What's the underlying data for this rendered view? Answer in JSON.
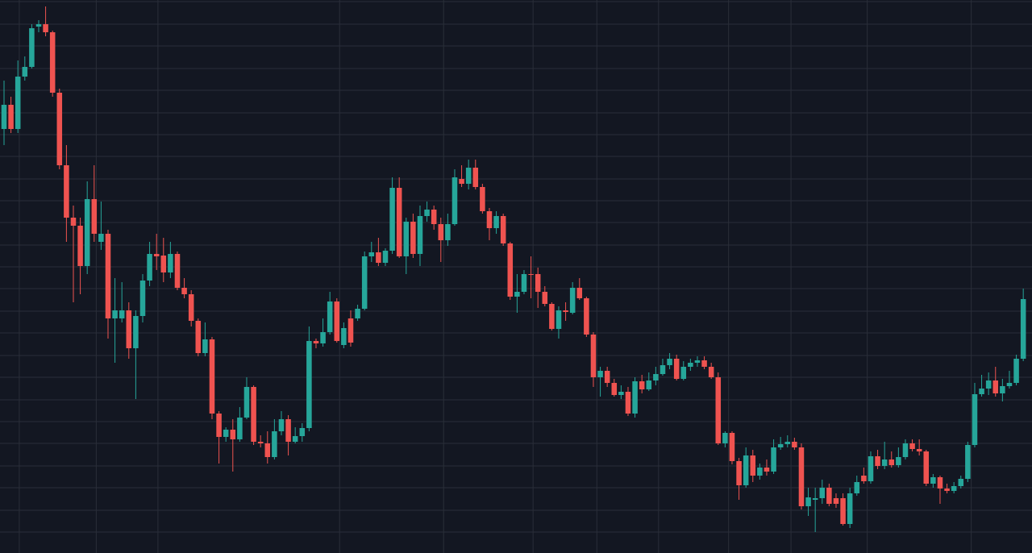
{
  "chart_data": {
    "type": "candlestick",
    "up_color": "#26a69a",
    "down_color": "#ef5350",
    "background": "#131722",
    "grid_color": "#2a2e39",
    "grid": true,
    "xlim": [
      -0.58,
      148.26
    ],
    "ylim": [
      14,
      700
    ],
    "xticks": [
      2.2,
      13.3,
      22.2,
      48.4,
      63.4,
      76.3,
      85.5,
      94.4,
      104.5,
      113.5,
      124.5,
      139.5
    ],
    "yticks": [
      698,
      670,
      643,
      615,
      588,
      560,
      533,
      506,
      478,
      451,
      424,
      396,
      369,
      342,
      314,
      287,
      259,
      232,
      204,
      177,
      150,
      122,
      95,
      67,
      40
    ],
    "open": [
      540,
      570,
      540,
      605,
      617,
      667,
      670,
      660,
      585,
      495,
      430,
      420,
      370,
      453,
      400,
      410,
      305,
      305,
      315,
      268,
      308,
      352,
      385,
      383,
      362,
      385,
      343,
      335,
      302,
      262,
      279,
      187,
      158,
      167,
      155,
      182,
      220,
      152,
      150,
      133,
      165,
      180,
      152,
      159,
      169,
      277,
      274,
      288,
      326,
      272,
      305,
      305,
      317,
      382,
      387,
      374,
      389,
      467,
      382,
      425,
      385,
      432,
      440,
      422,
      402,
      422,
      478,
      472,
      492,
      468,
      438,
      417,
      432,
      398,
      332,
      338,
      360,
      360,
      338,
      323,
      292,
      315,
      312,
      343,
      330,
      285,
      232,
      240,
      225,
      210,
      214,
      187,
      227,
      217,
      228,
      236,
      247,
      255,
      230,
      245,
      250,
      253,
      245,
      232,
      150,
      163,
      128,
      98,
      135,
      110,
      120,
      115,
      145,
      149,
      152,
      145,
      72,
      80,
      82,
      95,
      82,
      82,
      50,
      88,
      110,
      103,
      134,
      122,
      130,
      123,
      133,
      150,
      143,
      140,
      100,
      108,
      94,
      91,
      97,
      106,
      148,
      211,
      218,
      228,
      212,
      221,
      225,
      255
    ],
    "high": [
      600,
      580,
      625,
      630,
      670,
      675,
      692,
      662,
      590,
      520,
      445,
      430,
      475,
      495,
      450,
      415,
      355,
      350,
      325,
      315,
      360,
      400,
      410,
      405,
      400,
      388,
      355,
      340,
      305,
      300,
      282,
      190,
      170,
      180,
      195,
      232,
      222,
      160,
      165,
      180,
      190,
      185,
      170,
      175,
      295,
      280,
      305,
      338,
      330,
      300,
      315,
      322,
      388,
      400,
      405,
      392,
      480,
      480,
      430,
      435,
      445,
      450,
      445,
      430,
      435,
      490,
      495,
      502,
      502,
      472,
      442,
      438,
      435,
      400,
      360,
      365,
      382,
      368,
      345,
      325,
      320,
      325,
      350,
      355,
      332,
      288,
      245,
      245,
      230,
      222,
      220,
      232,
      235,
      238,
      245,
      255,
      262,
      260,
      252,
      255,
      258,
      258,
      250,
      238,
      165,
      165,
      132,
      145,
      142,
      125,
      130,
      155,
      158,
      160,
      157,
      150,
      95,
      95,
      105,
      100,
      88,
      88,
      95,
      110,
      120,
      140,
      142,
      152,
      140,
      145,
      155,
      155,
      155,
      142,
      112,
      110,
      100,
      102,
      110,
      152,
      225,
      235,
      238,
      245,
      230,
      240,
      260,
      342
    ],
    "low": [
      520,
      535,
      535,
      600,
      615,
      660,
      655,
      580,
      490,
      400,
      325,
      335,
      360,
      400,
      390,
      280,
      250,
      300,
      255,
      205,
      300,
      345,
      365,
      350,
      355,
      340,
      330,
      295,
      258,
      258,
      180,
      125,
      152,
      115,
      152,
      180,
      148,
      145,
      125,
      130,
      160,
      135,
      150,
      152,
      165,
      268,
      270,
      285,
      275,
      268,
      270,
      302,
      315,
      375,
      370,
      370,
      385,
      380,
      360,
      380,
      370,
      425,
      415,
      375,
      395,
      420,
      468,
      465,
      465,
      435,
      402,
      410,
      395,
      328,
      312,
      335,
      330,
      318,
      320,
      290,
      280,
      302,
      310,
      328,
      282,
      220,
      208,
      220,
      208,
      205,
      184,
      182,
      212,
      215,
      222,
      234,
      242,
      228,
      228,
      240,
      245,
      242,
      230,
      148,
      145,
      124,
      80,
      95,
      102,
      105,
      110,
      112,
      142,
      145,
      142,
      68,
      60,
      40,
      75,
      72,
      70,
      48,
      45,
      85,
      100,
      100,
      118,
      118,
      120,
      120,
      130,
      140,
      135,
      97,
      95,
      75,
      88,
      88,
      94,
      102,
      145,
      208,
      210,
      208,
      202,
      218,
      222,
      252
    ],
    "close": [
      570,
      540,
      605,
      617,
      665,
      670,
      660,
      585,
      495,
      430,
      420,
      370,
      453,
      410,
      410,
      305,
      315,
      315,
      268,
      308,
      352,
      385,
      382,
      362,
      385,
      343,
      335,
      302,
      262,
      279,
      187,
      158,
      167,
      155,
      182,
      220,
      152,
      150,
      133,
      165,
      180,
      152,
      159,
      169,
      277,
      274,
      288,
      326,
      277,
      293,
      275,
      317,
      382,
      387,
      374,
      389,
      467,
      382,
      425,
      385,
      432,
      440,
      422,
      402,
      422,
      480,
      472,
      492,
      468,
      438,
      417,
      432,
      398,
      332,
      338,
      360,
      359,
      338,
      323,
      292,
      315,
      313,
      343,
      330,
      285,
      232,
      240,
      225,
      210,
      214,
      187,
      227,
      217,
      228,
      236,
      247,
      255,
      230,
      245,
      250,
      253,
      245,
      232,
      150,
      163,
      128,
      98,
      135,
      110,
      120,
      115,
      145,
      149,
      152,
      145,
      72,
      83,
      82,
      95,
      75,
      75,
      50,
      88,
      102,
      103,
      134,
      122,
      130,
      123,
      133,
      150,
      143,
      140,
      100,
      108,
      94,
      91,
      97,
      106,
      148,
      211,
      218,
      228,
      212,
      221,
      225,
      255,
      329
    ]
  }
}
